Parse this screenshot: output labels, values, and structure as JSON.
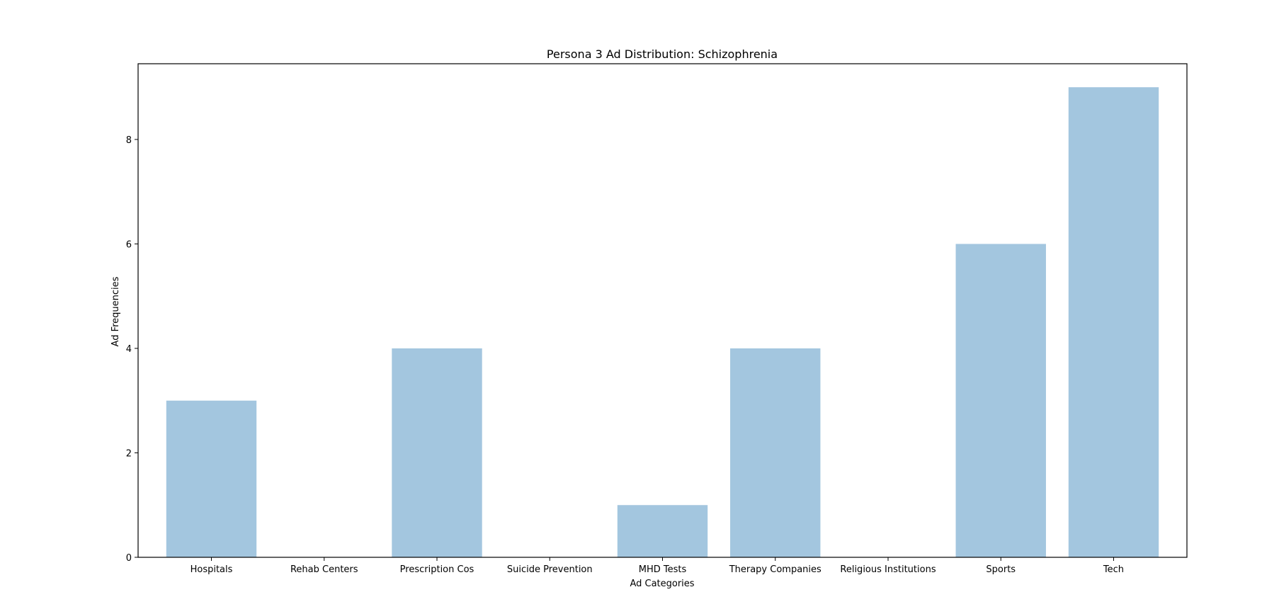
{
  "chart_data": {
    "type": "bar",
    "title": "Persona 3 Ad Distribution: Schizophrenia",
    "xlabel": "Ad Categories",
    "ylabel": "Ad Frequencies",
    "categories": [
      "Hospitals",
      "Rehab Centers",
      "Prescription Cos",
      "Suicide Prevention",
      "MHD Tests",
      "Therapy Companies",
      "Religious Institutions",
      "Sports",
      "Tech"
    ],
    "values": [
      3,
      0,
      4,
      0,
      1,
      4,
      0,
      6,
      9
    ],
    "ylim": [
      0,
      9.45
    ],
    "yticks": [
      "0",
      "2",
      "4",
      "6",
      "8"
    ],
    "bar_color": "#a3c6df",
    "grid": false,
    "legend": "none"
  }
}
